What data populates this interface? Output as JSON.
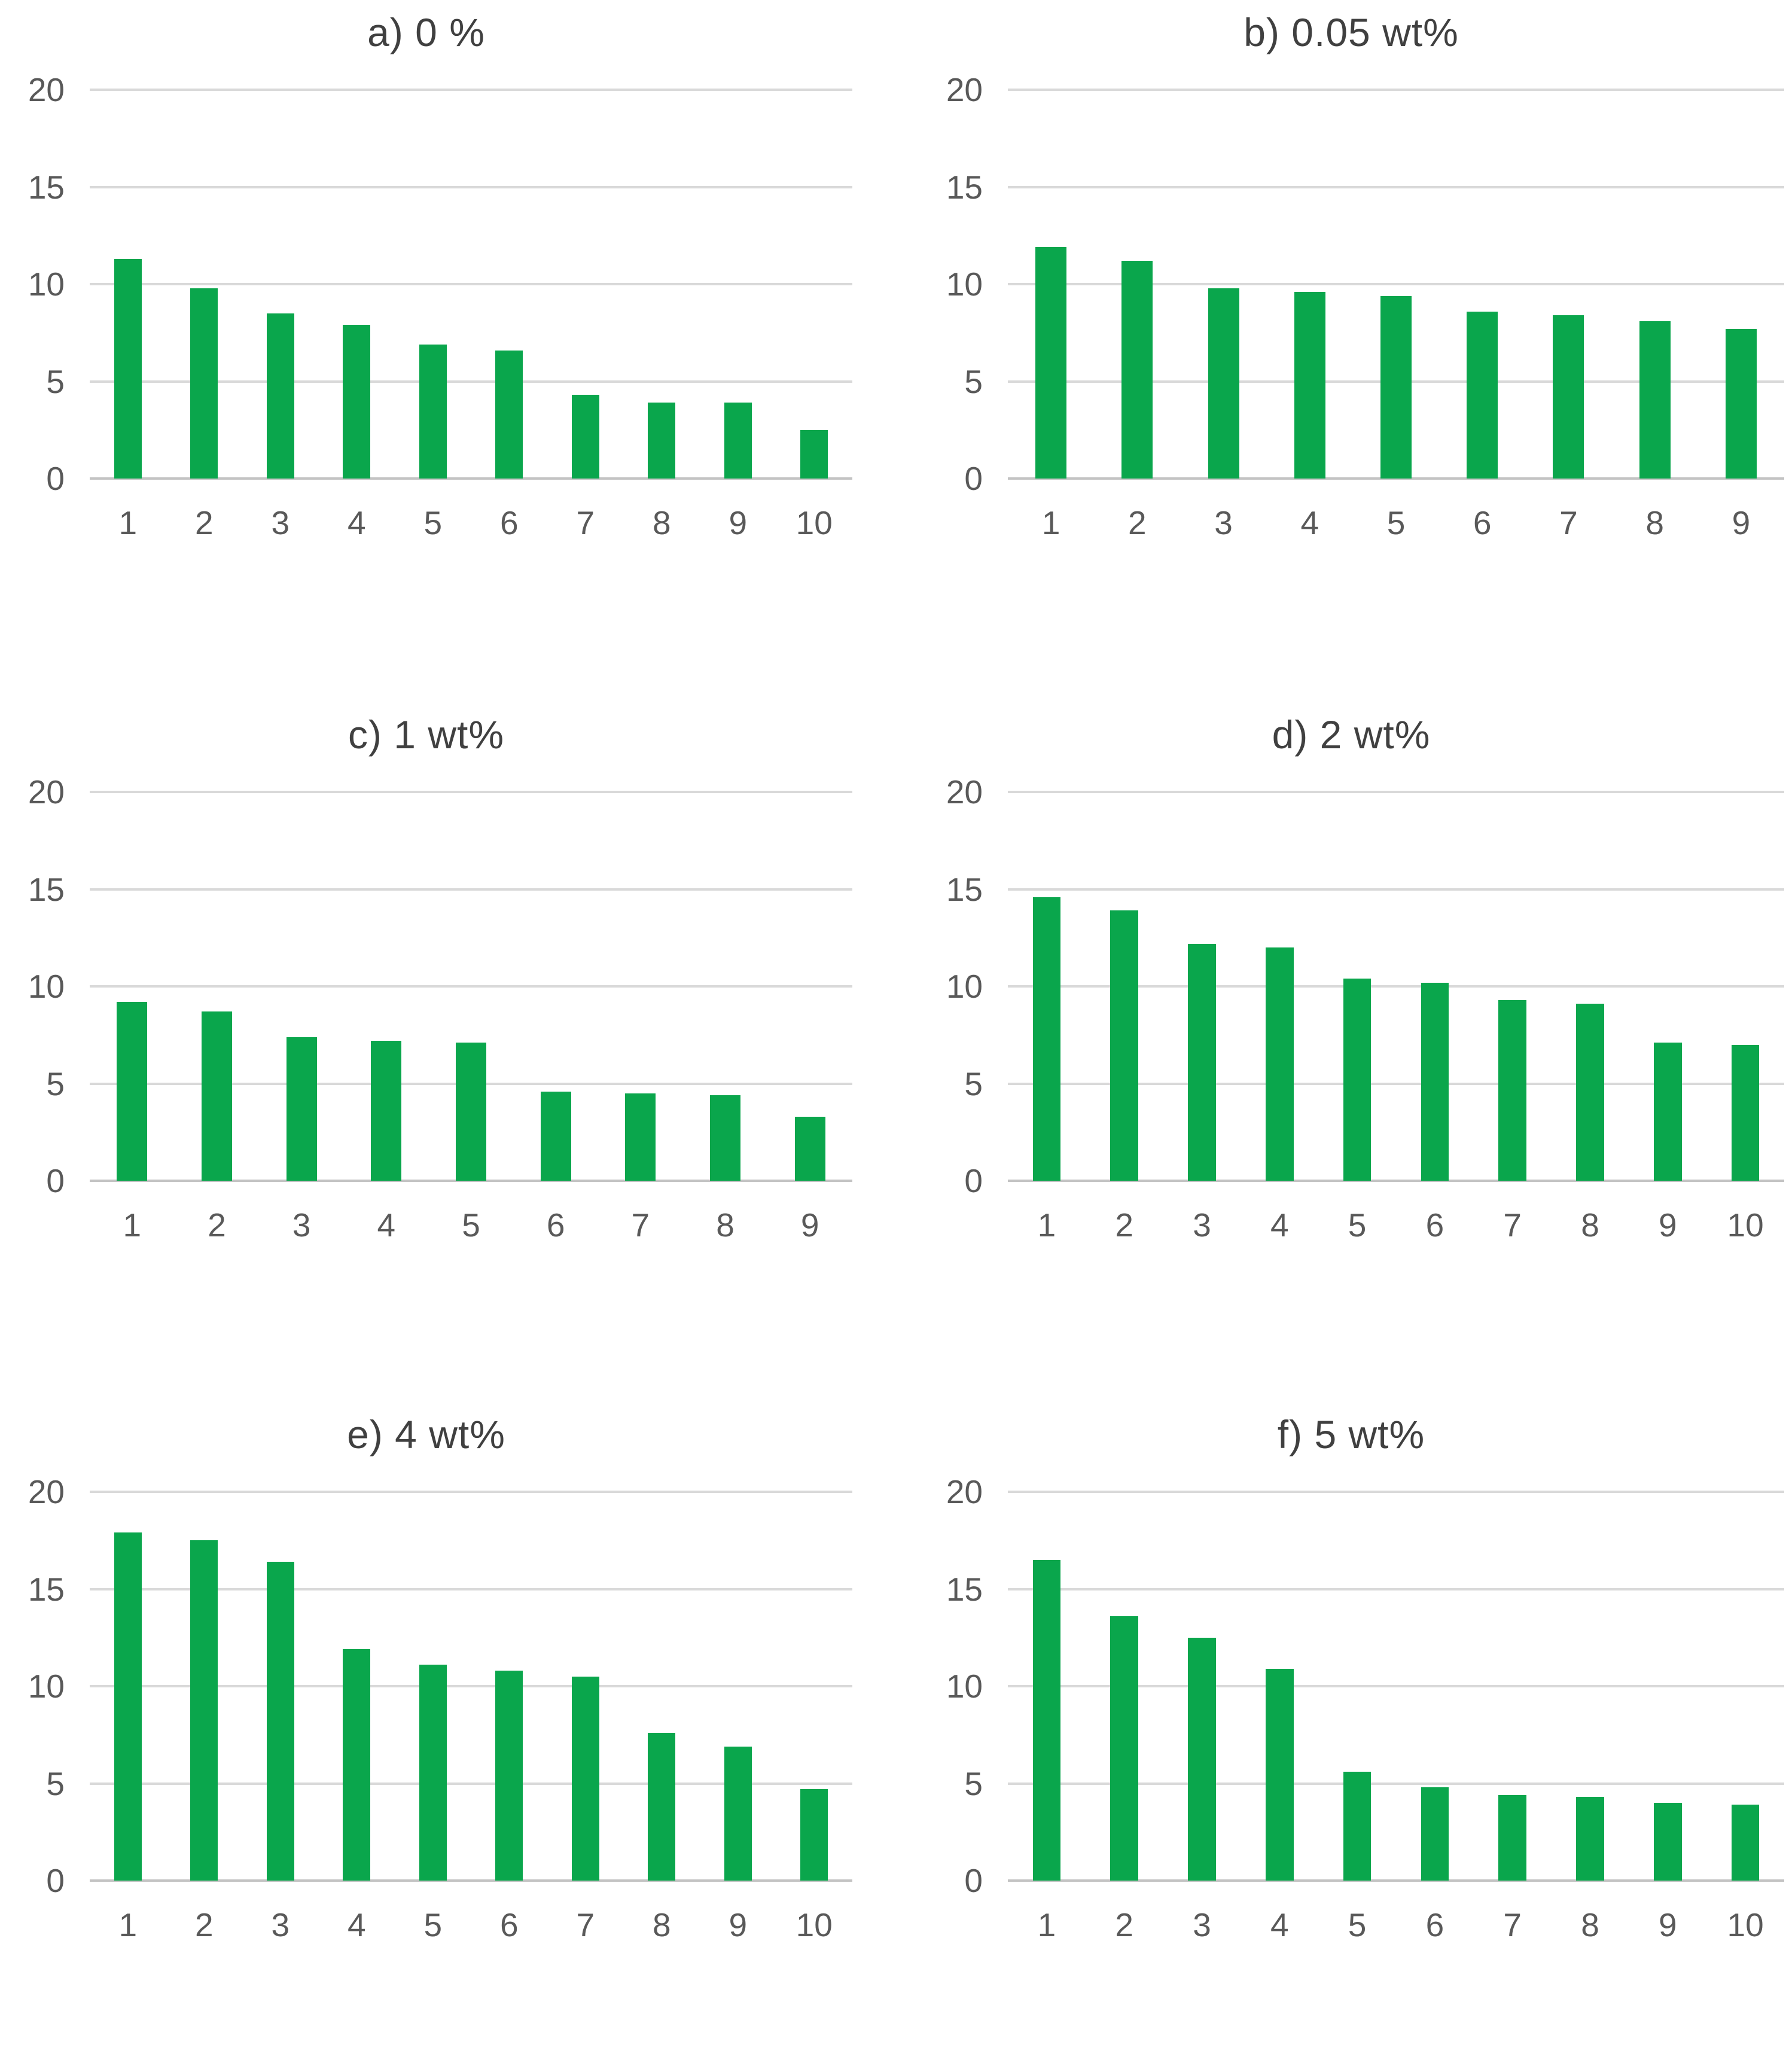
{
  "figure": {
    "bar_color": "#0aa64c",
    "gridline_color": "#d9d9d9",
    "axis_line_color": "#c3c3c3",
    "tick_label_color": "#595959",
    "title_color": "#404040"
  },
  "chart_data": [
    {
      "type": "bar",
      "title": "a) 0 %",
      "categories": [
        "1",
        "2",
        "3",
        "4",
        "5",
        "6",
        "7",
        "8",
        "9",
        "10"
      ],
      "values": [
        11.3,
        9.8,
        8.5,
        7.9,
        6.9,
        6.6,
        4.3,
        3.9,
        3.9,
        2.5
      ],
      "xlabel": "",
      "ylabel": "",
      "ylim": [
        0,
        20
      ],
      "yticks": [
        20,
        15,
        10,
        5,
        0
      ],
      "grid": true,
      "legend": "none"
    },
    {
      "type": "bar",
      "title": "b) 0.05 wt%",
      "categories": [
        "1",
        "2",
        "3",
        "4",
        "5",
        "6",
        "7",
        "8",
        "9"
      ],
      "values": [
        11.9,
        11.2,
        9.8,
        9.6,
        9.4,
        8.6,
        8.4,
        8.1,
        7.7
      ],
      "xlabel": "",
      "ylabel": "",
      "ylim": [
        0,
        20
      ],
      "yticks": [
        20,
        15,
        10,
        5,
        0
      ],
      "grid": true,
      "legend": "none"
    },
    {
      "type": "bar",
      "title": "c) 1 wt%",
      "categories": [
        "1",
        "2",
        "3",
        "4",
        "5",
        "6",
        "7",
        "8",
        "9"
      ],
      "values": [
        9.2,
        8.7,
        7.4,
        7.2,
        7.1,
        4.6,
        4.5,
        4.4,
        3.3
      ],
      "xlabel": "",
      "ylabel": "",
      "ylim": [
        0,
        20
      ],
      "yticks": [
        20,
        15,
        10,
        5,
        0
      ],
      "grid": true,
      "legend": "none"
    },
    {
      "type": "bar",
      "title": "d) 2 wt%",
      "categories": [
        "1",
        "2",
        "3",
        "4",
        "5",
        "6",
        "7",
        "8",
        "9",
        "10"
      ],
      "values": [
        14.6,
        13.9,
        12.2,
        12.0,
        10.4,
        10.2,
        9.3,
        9.1,
        7.1,
        7.0
      ],
      "xlabel": "",
      "ylabel": "",
      "ylim": [
        0,
        20
      ],
      "yticks": [
        20,
        15,
        10,
        5,
        0
      ],
      "grid": true,
      "legend": "none"
    },
    {
      "type": "bar",
      "title": "e) 4 wt%",
      "categories": [
        "1",
        "2",
        "3",
        "4",
        "5",
        "6",
        "7",
        "8",
        "9",
        "10"
      ],
      "values": [
        17.9,
        17.5,
        16.4,
        11.9,
        11.1,
        10.8,
        10.5,
        7.6,
        6.9,
        4.7
      ],
      "xlabel": "",
      "ylabel": "",
      "ylim": [
        0,
        20
      ],
      "yticks": [
        20,
        15,
        10,
        5,
        0
      ],
      "grid": true,
      "legend": "none"
    },
    {
      "type": "bar",
      "title": "f) 5 wt%",
      "categories": [
        "1",
        "2",
        "3",
        "4",
        "5",
        "6",
        "7",
        "8",
        "9",
        "10"
      ],
      "values": [
        16.5,
        13.6,
        12.5,
        10.9,
        5.6,
        4.8,
        4.4,
        4.3,
        4.0,
        3.9
      ],
      "xlabel": "",
      "ylabel": "",
      "ylim": [
        0,
        20
      ],
      "yticks": [
        20,
        15,
        10,
        5,
        0
      ],
      "grid": true,
      "legend": "none"
    }
  ]
}
